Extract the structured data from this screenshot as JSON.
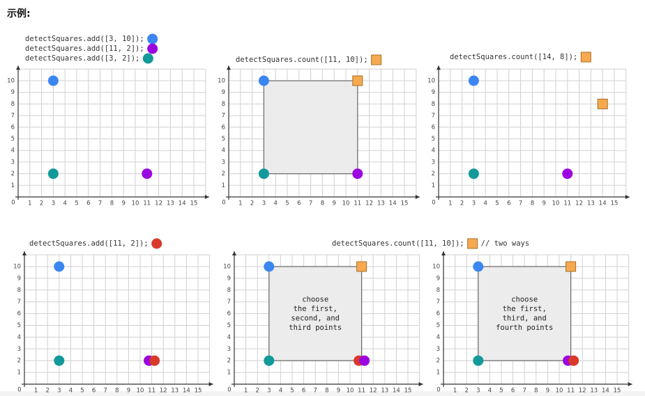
{
  "title": "示例:",
  "axes": {
    "origin": "0",
    "x_ticks": [
      1,
      2,
      3,
      4,
      5,
      6,
      7,
      8,
      9,
      10,
      11,
      12,
      13,
      14,
      15
    ],
    "y_ticks": [
      1,
      2,
      3,
      4,
      5,
      6,
      7,
      8,
      9,
      10
    ]
  },
  "panels": [
    {
      "captions": [
        {
          "text": "detectSquares.add([3, 10]);",
          "marker": "circle",
          "color": "#3b86f0"
        },
        {
          "text": "detectSquares.add([11, 2]);",
          "marker": "circle",
          "color": "#9b06e0"
        },
        {
          "text": "detectSquares.add([3, 2]);",
          "marker": "circle",
          "color": "#13999a"
        }
      ],
      "points": [
        {
          "x": 3,
          "y": 10,
          "shape": "circle",
          "color": "#3b86f0"
        },
        {
          "x": 11,
          "y": 2,
          "shape": "circle",
          "color": "#9b06e0"
        },
        {
          "x": 3,
          "y": 2,
          "shape": "circle",
          "color": "#13999a"
        }
      ]
    },
    {
      "captions": [
        {
          "text": "detectSquares.count([11, 10]);",
          "marker": "square",
          "color": "#f7a94f"
        }
      ],
      "square": {
        "x1": 3,
        "y1": 2,
        "x2": 11,
        "y2": 10
      },
      "points": [
        {
          "x": 3,
          "y": 10,
          "shape": "circle",
          "color": "#3b86f0"
        },
        {
          "x": 11,
          "y": 2,
          "shape": "circle",
          "color": "#9b06e0"
        },
        {
          "x": 3,
          "y": 2,
          "shape": "circle",
          "color": "#13999a"
        },
        {
          "x": 11,
          "y": 10,
          "shape": "square",
          "color": "#f7a94f"
        }
      ]
    },
    {
      "captions": [
        {
          "text": "detectSquares.count([14, 8]);",
          "marker": "square",
          "color": "#f7a94f"
        }
      ],
      "points": [
        {
          "x": 3,
          "y": 10,
          "shape": "circle",
          "color": "#3b86f0"
        },
        {
          "x": 11,
          "y": 2,
          "shape": "circle",
          "color": "#9b06e0"
        },
        {
          "x": 3,
          "y": 2,
          "shape": "circle",
          "color": "#13999a"
        },
        {
          "x": 14,
          "y": 8,
          "shape": "square",
          "color": "#f7a94f"
        }
      ]
    },
    {
      "captions": [
        {
          "text": "detectSquares.add([11, 2]);",
          "marker": "circle",
          "color": "#d8392b"
        }
      ],
      "points": [
        {
          "x": 3,
          "y": 10,
          "shape": "circle",
          "color": "#3b86f0"
        },
        {
          "x": 11,
          "y": 2,
          "shape": "circle",
          "color": "#9b06e0"
        },
        {
          "x": 3,
          "y": 2,
          "shape": "circle",
          "color": "#13999a"
        },
        {
          "x": 11,
          "y": 2,
          "shape": "circle",
          "color": "#d8392b"
        }
      ]
    },
    {
      "square": {
        "x1": 3,
        "y1": 2,
        "x2": 11,
        "y2": 10,
        "label": [
          "choose",
          "the first,",
          "second, and",
          "third points"
        ]
      },
      "points": [
        {
          "x": 3,
          "y": 10,
          "shape": "circle",
          "color": "#3b86f0"
        },
        {
          "x": 11,
          "y": 2,
          "shape": "circle",
          "color": "#d8392b"
        },
        {
          "x": 11,
          "y": 2,
          "shape": "circle",
          "color": "#9b06e0"
        },
        {
          "x": 3,
          "y": 2,
          "shape": "circle",
          "color": "#13999a"
        },
        {
          "x": 11,
          "y": 10,
          "shape": "square",
          "color": "#f7a94f"
        }
      ]
    },
    {
      "square": {
        "x1": 3,
        "y1": 2,
        "x2": 11,
        "y2": 10,
        "label": [
          "choose",
          "the first,",
          "third, and",
          "fourth points"
        ]
      },
      "points": [
        {
          "x": 3,
          "y": 10,
          "shape": "circle",
          "color": "#3b86f0"
        },
        {
          "x": 11,
          "y": 2,
          "shape": "circle",
          "color": "#9b06e0"
        },
        {
          "x": 11,
          "y": 2,
          "shape": "circle",
          "color": "#d8392b"
        },
        {
          "x": 3,
          "y": 2,
          "shape": "circle",
          "color": "#13999a"
        },
        {
          "x": 11,
          "y": 10,
          "shape": "square",
          "color": "#f7a94f"
        }
      ]
    }
  ],
  "shared_caption": {
    "text": "detectSquares.count([11, 10]);",
    "marker": "square",
    "color": "#f7a94f",
    "note": "// two ways"
  }
}
